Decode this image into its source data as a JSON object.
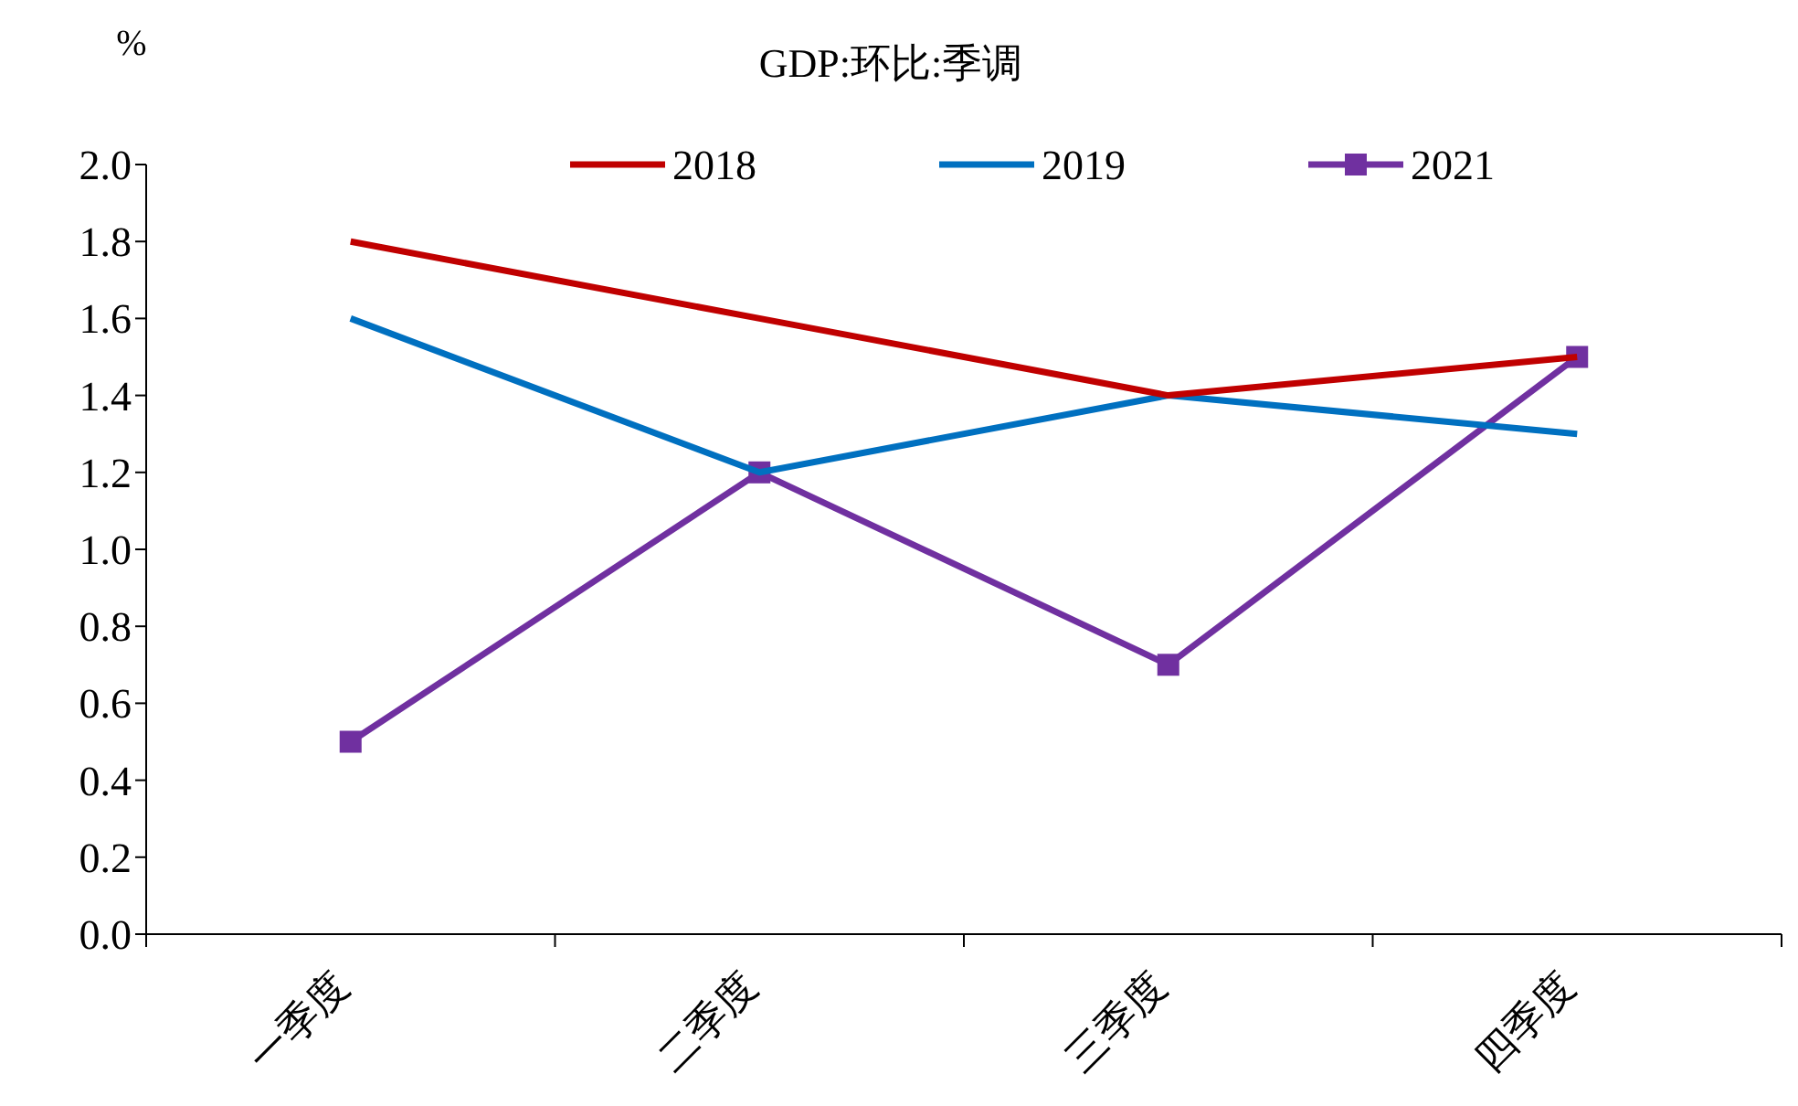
{
  "chart_data": {
    "type": "line",
    "title": "GDP:环比:季调",
    "ylabel": "%",
    "categories": [
      "一季度",
      "二季度",
      "三季度",
      "四季度"
    ],
    "series": [
      {
        "name": "2018",
        "color": "#c00000",
        "values": [
          1.8,
          1.6,
          1.4,
          1.5
        ],
        "marker": "none"
      },
      {
        "name": "2019",
        "color": "#0070c0",
        "values": [
          1.6,
          1.2,
          1.4,
          1.3
        ],
        "marker": "none"
      },
      {
        "name": "2021",
        "color": "#7030a0",
        "values": [
          0.5,
          1.2,
          0.7,
          1.5
        ],
        "marker": "square"
      }
    ],
    "ylim": [
      0,
      2.0
    ],
    "yticks": [
      {
        "value": 0,
        "label": "0.0"
      },
      {
        "value": 0.2,
        "label": "0.2"
      },
      {
        "value": 0.4,
        "label": "0.4"
      },
      {
        "value": 0.6,
        "label": "0.6"
      },
      {
        "value": 0.8,
        "label": "0.8"
      },
      {
        "value": 1.0,
        "label": "1.0"
      },
      {
        "value": 1.2,
        "label": "1.2"
      },
      {
        "value": 1.4,
        "label": "1.4"
      },
      {
        "value": 1.6,
        "label": "1.6"
      },
      {
        "value": 1.8,
        "label": "1.8"
      },
      {
        "value": 2.0,
        "label": "2.0"
      }
    ],
    "legend": "top",
    "grid": false,
    "line_style": "solid"
  }
}
